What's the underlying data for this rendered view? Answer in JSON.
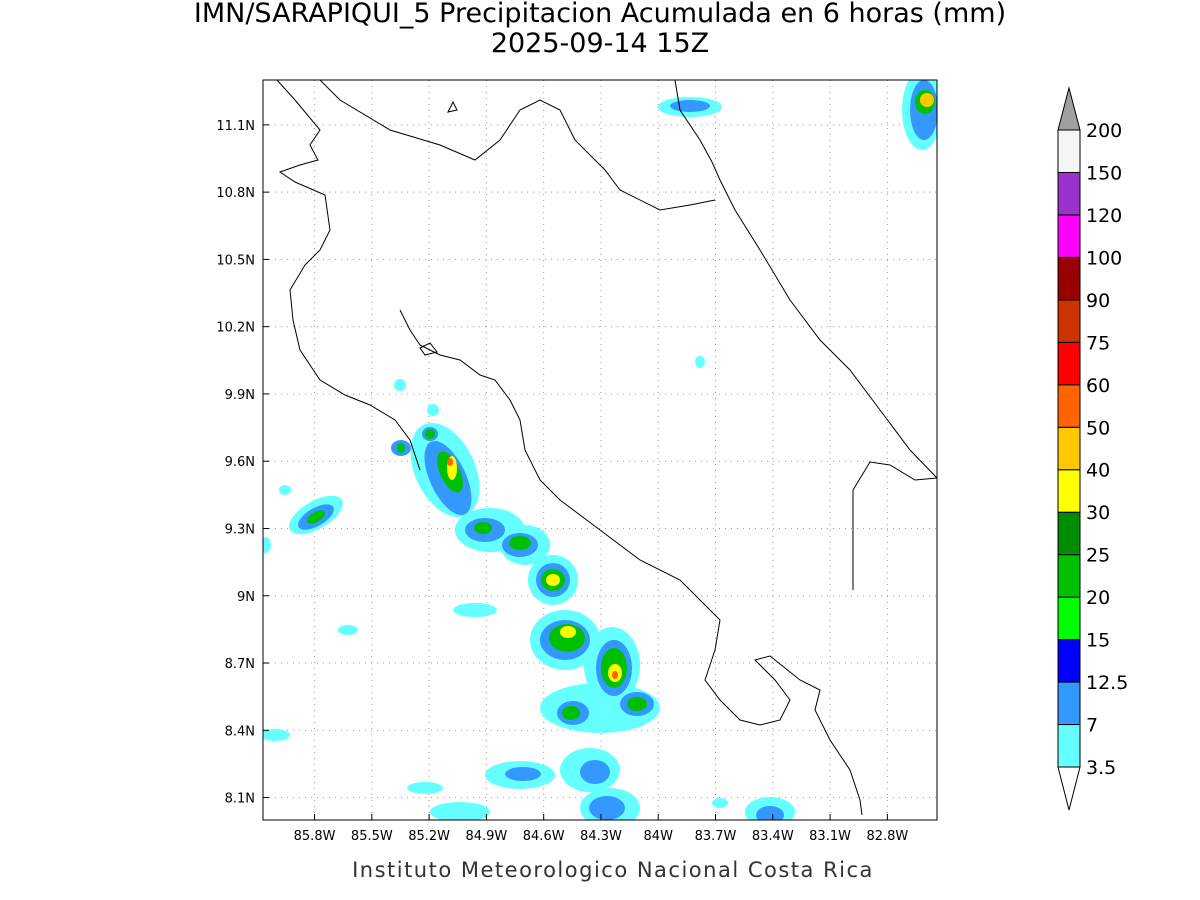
{
  "chart_data": {
    "type": "map",
    "title": "IMN/SARAPIQUI_5 Precipitacion Acumulada en 6 horas (mm)",
    "subtitle": "2025-09-14 15Z",
    "credit": "Instituto Meteorologico Nacional Costa Rica",
    "xlim": [
      -86.07,
      -82.54
    ],
    "ylim": [
      8.0,
      11.3
    ],
    "xticks": [
      {
        "value": -85.8,
        "label": "85.8W"
      },
      {
        "value": -85.5,
        "label": "85.5W"
      },
      {
        "value": -85.2,
        "label": "85.2W"
      },
      {
        "value": -84.9,
        "label": "84.9W"
      },
      {
        "value": -84.6,
        "label": "84.6W"
      },
      {
        "value": -84.3,
        "label": "84.3W"
      },
      {
        "value": -84.0,
        "label": "84W"
      },
      {
        "value": -83.7,
        "label": "83.7W"
      },
      {
        "value": -83.4,
        "label": "83.4W"
      },
      {
        "value": -83.1,
        "label": "83.1W"
      },
      {
        "value": -82.8,
        "label": "82.8W"
      }
    ],
    "yticks": [
      {
        "value": 8.1,
        "label": "8.1N"
      },
      {
        "value": 8.4,
        "label": "8.4N"
      },
      {
        "value": 8.7,
        "label": "8.7N"
      },
      {
        "value": 9.0,
        "label": "9N"
      },
      {
        "value": 9.3,
        "label": "9.3N"
      },
      {
        "value": 9.6,
        "label": "9.6N"
      },
      {
        "value": 9.9,
        "label": "9.9N"
      },
      {
        "value": 10.2,
        "label": "10.2N"
      },
      {
        "value": 10.5,
        "label": "10.5N"
      },
      {
        "value": 10.8,
        "label": "10.8N"
      },
      {
        "value": 11.1,
        "label": "11.1N"
      }
    ],
    "grid": true,
    "colorbar": {
      "levels": [
        3.5,
        7,
        12.5,
        15,
        20,
        25,
        30,
        40,
        50,
        60,
        75,
        90,
        100,
        120,
        150,
        200
      ],
      "colors": [
        "#66ffff",
        "#3399ff",
        "#0000ff",
        "#00ff00",
        "#00c000",
        "#008c00",
        "#ffff00",
        "#ffc800",
        "#ff6400",
        "#ff0000",
        "#cc3300",
        "#990000",
        "#ff00ff",
        "#9933cc",
        "#f5f5f5"
      ],
      "under_color": "#ffffff",
      "over_color": "#a0a0a0"
    }
  }
}
